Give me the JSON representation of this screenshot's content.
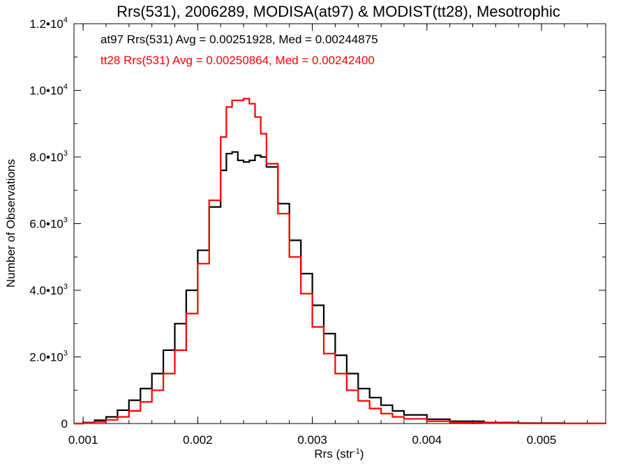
{
  "chart_data": {
    "type": "line",
    "title": "Rrs(531), 2006289, MODISA(at97) & MODIST(tt28), Mesotrophic",
    "xlabel": "Rrs (str",
    "xlabel_sup": "-1",
    "xlabel_suffix": ")",
    "ylabel": "Number of Observations",
    "xlim": [
      0.00092,
      0.00556
    ],
    "ylim": [
      0,
      12000
    ],
    "grid": false,
    "x_ticks": [
      {
        "value": 0.001,
        "label": "0.001"
      },
      {
        "value": 0.002,
        "label": "0.002"
      },
      {
        "value": 0.003,
        "label": "0.003"
      },
      {
        "value": 0.004,
        "label": "0.004"
      },
      {
        "value": 0.005,
        "label": "0.005"
      }
    ],
    "y_ticks": [
      {
        "value": 0,
        "mantissa": "0",
        "exp": ""
      },
      {
        "value": 2000,
        "mantissa": "2.0•10",
        "exp": "3"
      },
      {
        "value": 4000,
        "mantissa": "4.0•10",
        "exp": "3"
      },
      {
        "value": 6000,
        "mantissa": "6.0•10",
        "exp": "3"
      },
      {
        "value": 8000,
        "mantissa": "8.0•10",
        "exp": "3"
      },
      {
        "value": 10000,
        "mantissa": "1.0•10",
        "exp": "4"
      },
      {
        "value": 12000,
        "mantissa": "1.2•10",
        "exp": "4"
      }
    ],
    "annotations": [
      {
        "text": "at97 Rrs(531) Avg = 0.00251928, Med = 0.00244875",
        "color": "#000000"
      },
      {
        "text": "tt28 Rrs(531) Avg = 0.00250864, Med = 0.00242400",
        "color": "#ff0000"
      }
    ],
    "series": [
      {
        "color": "#000000",
        "x": [
          0.00092,
          0.001,
          0.0011,
          0.0012,
          0.0013,
          0.0014,
          0.0015,
          0.0016,
          0.0017,
          0.0018,
          0.0019,
          0.002,
          0.0021,
          0.0022,
          0.00225,
          0.0023,
          0.00235,
          0.0024,
          0.00245,
          0.0025,
          0.00255,
          0.0026,
          0.0027,
          0.0028,
          0.0029,
          0.003,
          0.0031,
          0.0032,
          0.0033,
          0.0034,
          0.0035,
          0.0036,
          0.0037,
          0.0038,
          0.004,
          0.0042,
          0.0045,
          0.0048,
          0.0052,
          0.00556
        ],
        "y": [
          0,
          30,
          100,
          200,
          400,
          700,
          1050,
          1500,
          2200,
          3000,
          4000,
          5200,
          6500,
          7600,
          8100,
          8150,
          7900,
          7850,
          7900,
          8050,
          8000,
          7700,
          6600,
          5500,
          4500,
          3550,
          2700,
          2050,
          1500,
          1050,
          780,
          550,
          380,
          260,
          130,
          70,
          30,
          12,
          3,
          0
        ]
      },
      {
        "color": "#ff0000",
        "x": [
          0.00092,
          0.001,
          0.0011,
          0.0012,
          0.0013,
          0.0014,
          0.0015,
          0.0016,
          0.0017,
          0.0018,
          0.0019,
          0.002,
          0.0021,
          0.0022,
          0.00225,
          0.0023,
          0.00235,
          0.0024,
          0.00245,
          0.0025,
          0.00255,
          0.0026,
          0.0027,
          0.0028,
          0.0029,
          0.003,
          0.0031,
          0.0032,
          0.0033,
          0.0034,
          0.0035,
          0.0036,
          0.0037,
          0.0038,
          0.004,
          0.0042,
          0.0045,
          0.0048,
          0.0052,
          0.00556
        ],
        "y": [
          0,
          15,
          50,
          110,
          200,
          380,
          650,
          1000,
          1500,
          2200,
          3300,
          4800,
          6700,
          8600,
          9500,
          9700,
          9700,
          9750,
          9600,
          9200,
          8700,
          7800,
          6300,
          5000,
          3900,
          2900,
          2100,
          1500,
          1000,
          680,
          450,
          300,
          200,
          140,
          70,
          35,
          14,
          5,
          2,
          0
        ]
      }
    ]
  }
}
